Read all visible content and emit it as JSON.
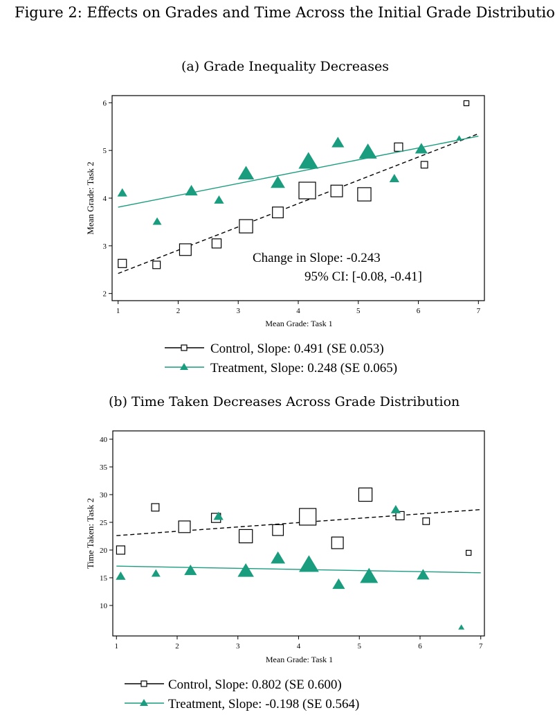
{
  "figure_title": "Figure 2: Effects on Grades and Time Across the Initial Grade Distributio",
  "colors": {
    "control": "#000000",
    "treatment": "#1a9c7f"
  },
  "chart_data": [
    {
      "type": "scatter",
      "title": "(a) Grade Inequality Decreases",
      "xlabel": "Mean Grade: Task 1",
      "ylabel": "Mean Grade: Task 2",
      "xlim": [
        1,
        7
      ],
      "ylim": [
        2,
        6
      ],
      "xticks": [
        1,
        2,
        3,
        4,
        5,
        6,
        7
      ],
      "yticks": [
        2,
        3,
        4,
        5,
        6
      ],
      "grid": false,
      "annotation_line1": "Change in Slope:   -0.243",
      "annotation_line2": "95% CI: [-0.08, -0.41]",
      "series": [
        {
          "name": "Control",
          "legend": "Control, Slope: 0.491 (SE 0.053)",
          "marker": "square-hollow",
          "fit": {
            "x": [
              1,
              7
            ],
            "y": [
              2.42,
              5.35
            ],
            "dash": true
          },
          "points": [
            {
              "x": 1.07,
              "y": 2.63,
              "w": 1.0
            },
            {
              "x": 1.64,
              "y": 2.6,
              "w": 0.9
            },
            {
              "x": 2.12,
              "y": 2.92,
              "w": 1.4
            },
            {
              "x": 2.64,
              "y": 3.05,
              "w": 1.1
            },
            {
              "x": 3.13,
              "y": 3.41,
              "w": 1.6
            },
            {
              "x": 3.66,
              "y": 3.7,
              "w": 1.3
            },
            {
              "x": 4.15,
              "y": 4.16,
              "w": 2.0
            },
            {
              "x": 4.64,
              "y": 4.15,
              "w": 1.4
            },
            {
              "x": 5.1,
              "y": 4.08,
              "w": 1.6
            },
            {
              "x": 5.67,
              "y": 5.07,
              "w": 1.0
            },
            {
              "x": 6.1,
              "y": 4.7,
              "w": 0.8
            },
            {
              "x": 6.8,
              "y": 5.99,
              "w": 0.6
            }
          ]
        },
        {
          "name": "Treatment",
          "legend": "Treatment, Slope: 0.248 (SE 0.065)",
          "marker": "triangle-filled",
          "fit": {
            "x": [
              1,
              7
            ],
            "y": [
              3.81,
              5.3
            ],
            "dash": false
          },
          "points": [
            {
              "x": 1.07,
              "y": 4.1,
              "w": 1.0
            },
            {
              "x": 1.65,
              "y": 3.5,
              "w": 0.9
            },
            {
              "x": 2.22,
              "y": 4.14,
              "w": 1.3
            },
            {
              "x": 2.68,
              "y": 3.95,
              "w": 1.0
            },
            {
              "x": 3.13,
              "y": 4.5,
              "w": 1.7
            },
            {
              "x": 3.66,
              "y": 4.31,
              "w": 1.5
            },
            {
              "x": 4.17,
              "y": 4.75,
              "w": 2.1
            },
            {
              "x": 4.66,
              "y": 5.15,
              "w": 1.3
            },
            {
              "x": 5.16,
              "y": 4.95,
              "w": 1.9
            },
            {
              "x": 5.6,
              "y": 4.4,
              "w": 1.0
            },
            {
              "x": 6.05,
              "y": 5.02,
              "w": 1.3
            },
            {
              "x": 6.68,
              "y": 5.25,
              "w": 0.6
            }
          ]
        }
      ]
    },
    {
      "type": "scatter",
      "title": "(b) Time Taken Decreases Across Grade Distribution",
      "xlabel": "Mean Grade: Task 1",
      "ylabel": "Time Taken: Task 2",
      "xlim": [
        1,
        7
      ],
      "ylim": [
        5.5,
        40
      ],
      "xticks": [
        1,
        2,
        3,
        4,
        5,
        6,
        7
      ],
      "yticks": [
        10,
        15,
        20,
        25,
        30,
        35,
        40
      ],
      "grid": false,
      "series": [
        {
          "name": "Control",
          "legend": "Control, Slope: 0.802 (SE 0.600)",
          "marker": "square-hollow",
          "fit": {
            "x": [
              1,
              7
            ],
            "y": [
              22.6,
              27.3
            ],
            "dash": true
          },
          "points": [
            {
              "x": 1.07,
              "y": 20.0,
              "w": 1.0
            },
            {
              "x": 1.64,
              "y": 27.7,
              "w": 0.9
            },
            {
              "x": 2.12,
              "y": 24.2,
              "w": 1.4
            },
            {
              "x": 2.64,
              "y": 25.8,
              "w": 1.1
            },
            {
              "x": 3.13,
              "y": 22.5,
              "w": 1.6
            },
            {
              "x": 3.66,
              "y": 23.6,
              "w": 1.3
            },
            {
              "x": 4.15,
              "y": 26.0,
              "w": 2.0
            },
            {
              "x": 4.64,
              "y": 21.3,
              "w": 1.4
            },
            {
              "x": 5.1,
              "y": 30.0,
              "w": 1.6
            },
            {
              "x": 5.67,
              "y": 26.2,
              "w": 1.0
            },
            {
              "x": 6.1,
              "y": 25.2,
              "w": 0.8
            },
            {
              "x": 6.8,
              "y": 19.5,
              "w": 0.6
            }
          ]
        },
        {
          "name": "Treatment",
          "legend": "Treatment, Slope: -0.198 (SE 0.564)",
          "marker": "triangle-filled",
          "fit": {
            "x": [
              1,
              7
            ],
            "y": [
              17.1,
              15.9
            ],
            "dash": false
          },
          "points": [
            {
              "x": 1.07,
              "y": 15.2,
              "w": 1.0
            },
            {
              "x": 1.65,
              "y": 15.7,
              "w": 0.9
            },
            {
              "x": 2.22,
              "y": 16.2,
              "w": 1.3
            },
            {
              "x": 2.68,
              "y": 26.0,
              "w": 1.0
            },
            {
              "x": 3.13,
              "y": 16.1,
              "w": 1.7
            },
            {
              "x": 3.66,
              "y": 18.4,
              "w": 1.5
            },
            {
              "x": 4.17,
              "y": 17.2,
              "w": 2.1
            },
            {
              "x": 4.66,
              "y": 13.7,
              "w": 1.3
            },
            {
              "x": 5.16,
              "y": 15.1,
              "w": 1.9
            },
            {
              "x": 5.6,
              "y": 27.2,
              "w": 1.0
            },
            {
              "x": 6.05,
              "y": 15.4,
              "w": 1.3
            },
            {
              "x": 6.68,
              "y": 6.0,
              "w": 0.6
            }
          ]
        }
      ]
    }
  ]
}
